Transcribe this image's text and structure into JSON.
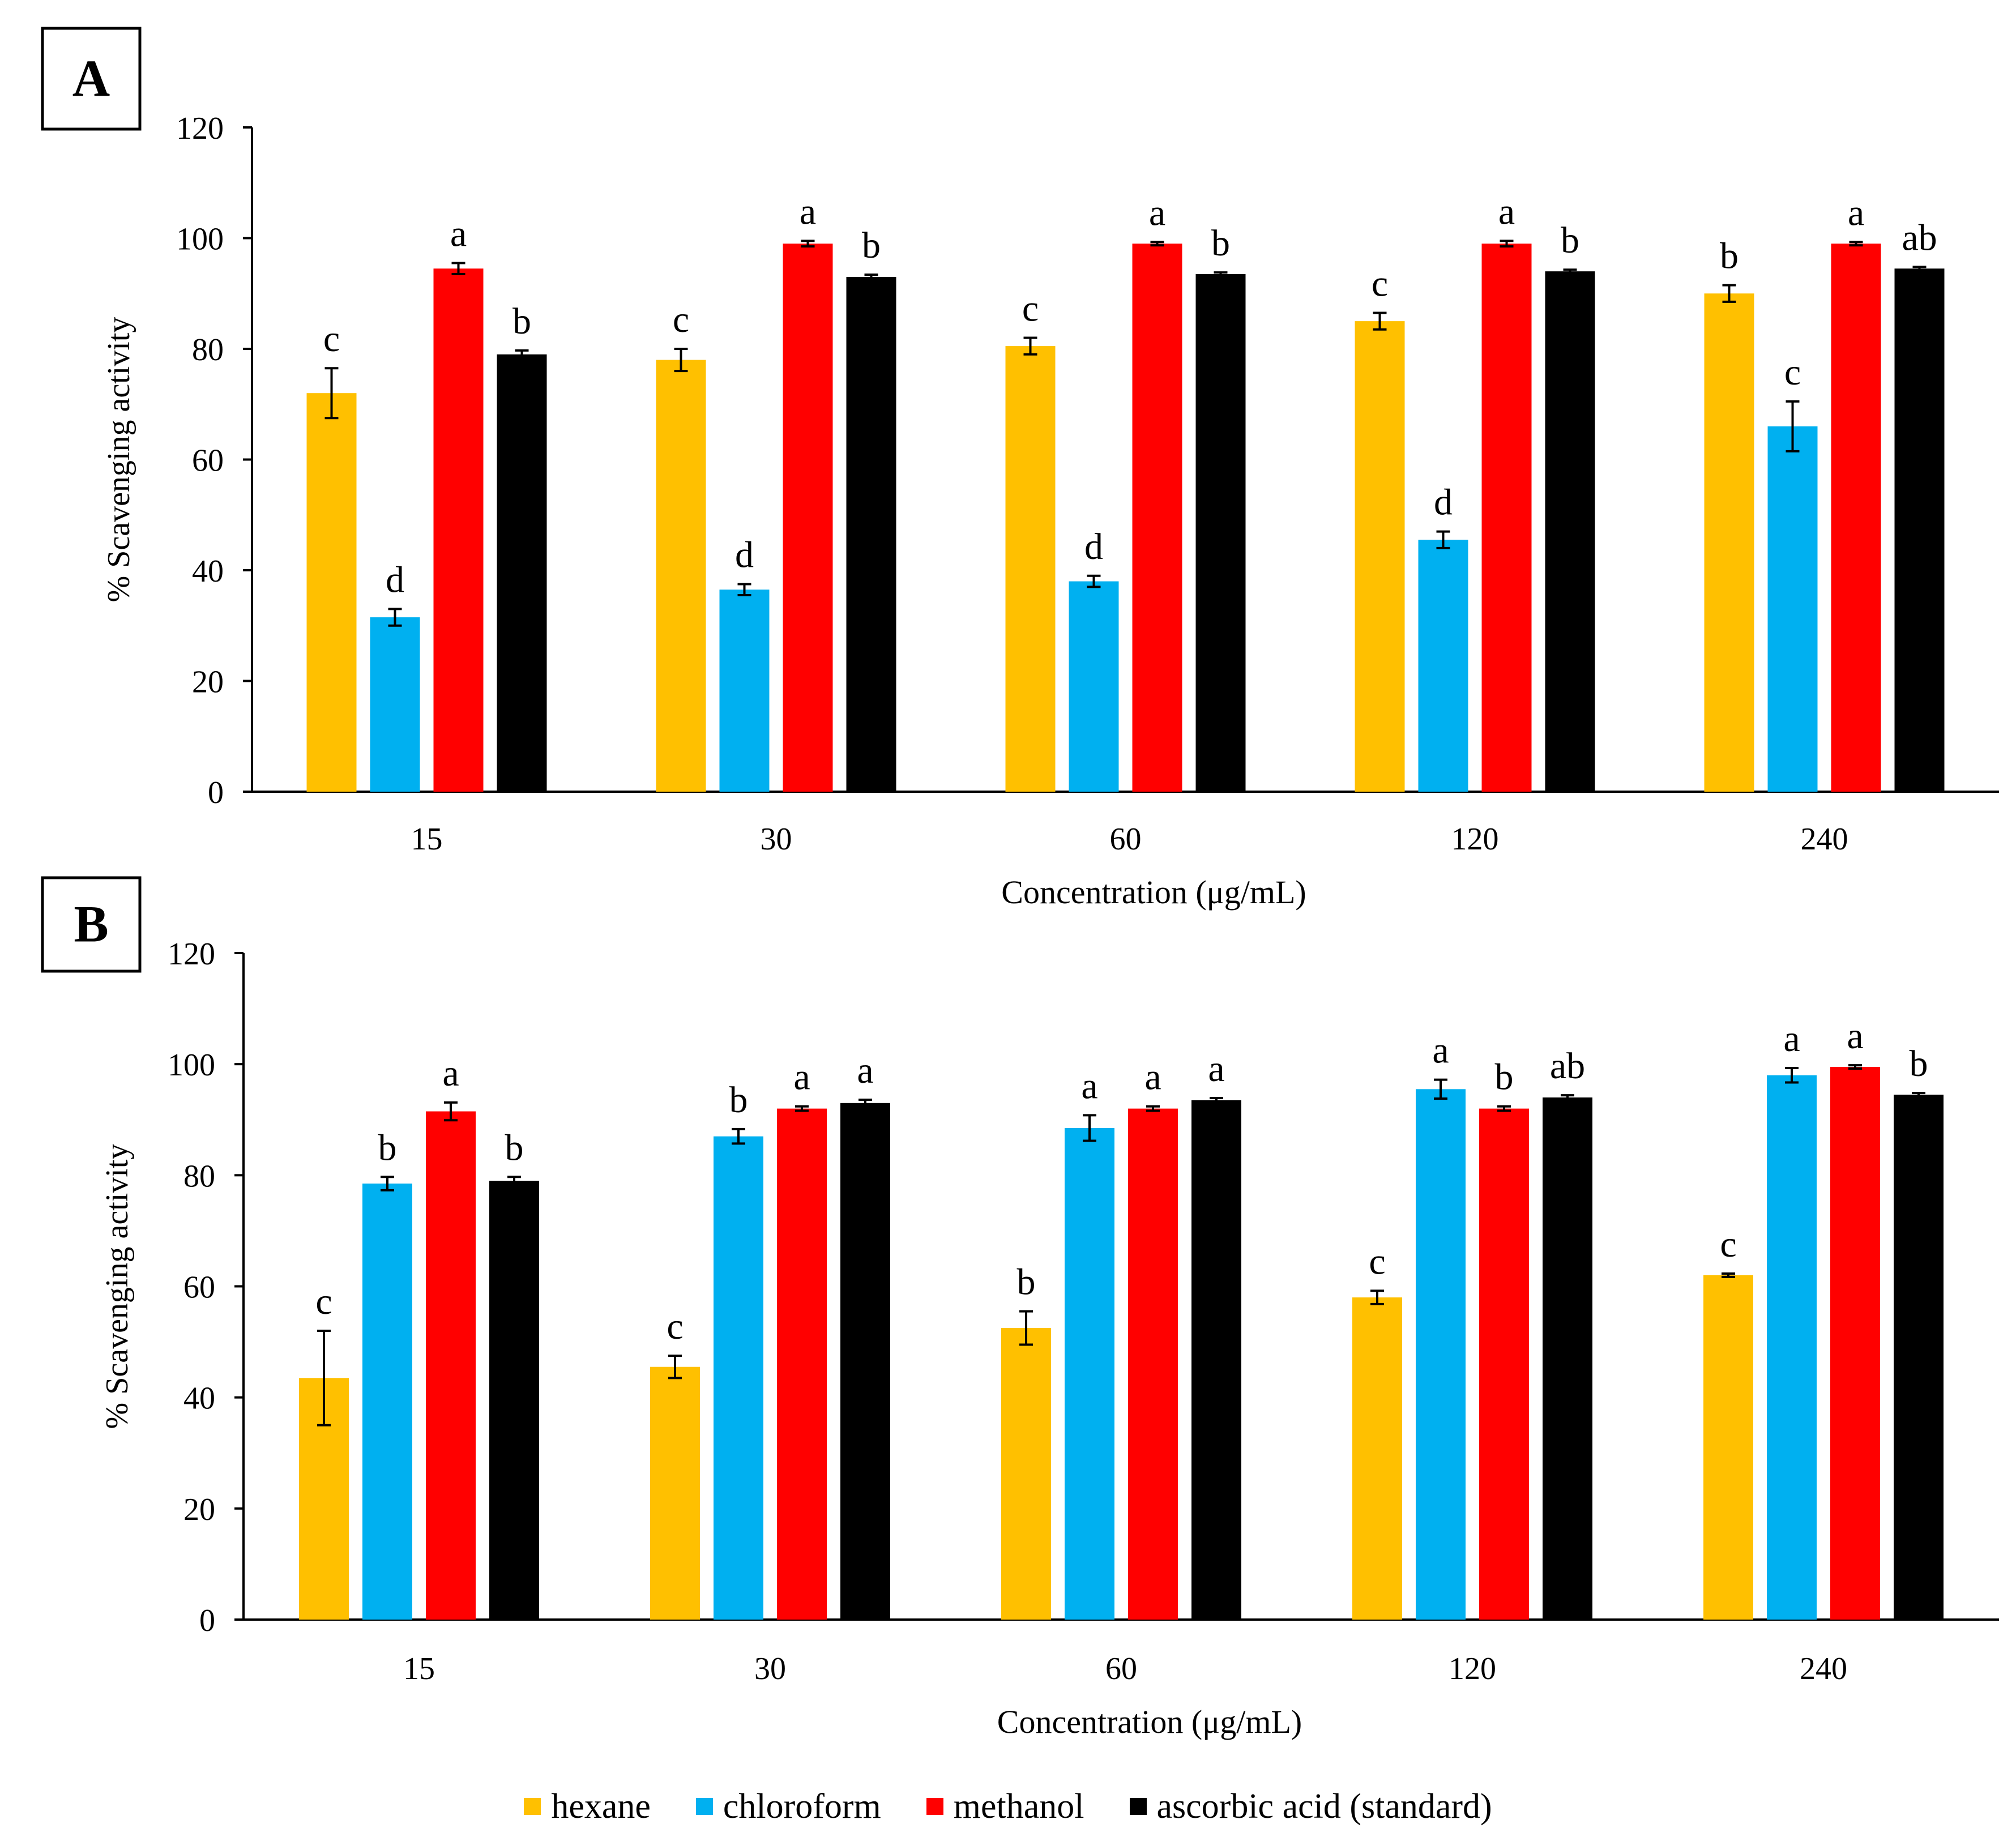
{
  "colors": {
    "hexane": "#FFC000",
    "chloroform": "#00B0F0",
    "methanol": "#FF0000",
    "ascorbic": "#000000"
  },
  "legend": [
    {
      "label": "hexane",
      "color": "#FFC000"
    },
    {
      "label": "chloroform",
      "color": "#00B0F0"
    },
    {
      "label": "methanol",
      "color": "#FF0000"
    },
    {
      "label": "ascorbic acid (standard)",
      "color": "#000000"
    }
  ],
  "chart_data": [
    {
      "panel": "A",
      "type": "bar",
      "xlabel": "Concentration (μg/mL)",
      "ylabel": "% Scavenging activity",
      "ylim": [
        0,
        120
      ],
      "yticks": [
        "0",
        "20",
        "40",
        "60",
        "80",
        "100",
        "120"
      ],
      "categories": [
        "15",
        "30",
        "60",
        "120",
        "240"
      ],
      "series": [
        {
          "name": "hexane",
          "values": [
            72,
            78,
            80.5,
            85,
            90
          ],
          "errors": [
            4.5,
            2,
            1.5,
            1.5,
            1.5
          ],
          "letters": [
            "c",
            "c",
            "c",
            "c",
            "b"
          ]
        },
        {
          "name": "chloroform",
          "values": [
            31.5,
            36.5,
            38,
            45.5,
            66
          ],
          "errors": [
            1.5,
            1,
            1,
            1.5,
            4.5
          ],
          "letters": [
            "d",
            "d",
            "d",
            "d",
            "c"
          ]
        },
        {
          "name": "methanol",
          "values": [
            94.5,
            99,
            99,
            99,
            99
          ],
          "errors": [
            1,
            0.5,
            0.3,
            0.5,
            0.3
          ],
          "letters": [
            "a",
            "a",
            "a",
            "a",
            "a"
          ]
        },
        {
          "name": "ascorbic acid (standard)",
          "values": [
            79,
            93,
            93.5,
            94,
            94.5
          ],
          "errors": [
            0.7,
            0.4,
            0.3,
            0.3,
            0.3
          ],
          "letters": [
            "b",
            "b",
            "b",
            "b",
            "ab"
          ]
        }
      ]
    },
    {
      "panel": "B",
      "type": "bar",
      "xlabel": "Concentration (μg/mL)",
      "ylabel": "% Scavenging activity",
      "ylim": [
        0,
        120
      ],
      "yticks": [
        "0",
        "20",
        "40",
        "60",
        "80",
        "100",
        "120"
      ],
      "categories": [
        "15",
        "30",
        "60",
        "120",
        "240"
      ],
      "series": [
        {
          "name": "hexane",
          "values": [
            43.5,
            45.5,
            52.5,
            58,
            62
          ],
          "errors": [
            8.5,
            2,
            3,
            1.2,
            0.3
          ],
          "letters": [
            "c",
            "c",
            "b",
            "c",
            "c"
          ]
        },
        {
          "name": "chloroform",
          "values": [
            78.5,
            87,
            88.5,
            95.5,
            98
          ],
          "errors": [
            1.2,
            1.3,
            2.3,
            1.7,
            1.3
          ],
          "letters": [
            "b",
            "b",
            "a",
            "a",
            "a"
          ]
        },
        {
          "name": "methanol",
          "values": [
            91.5,
            92,
            92,
            92,
            99.5
          ],
          "errors": [
            1.6,
            0.4,
            0.4,
            0.4,
            0.3
          ],
          "letters": [
            "a",
            "a",
            "a",
            "b",
            "a"
          ]
        },
        {
          "name": "ascorbic acid (standard)",
          "values": [
            79,
            93,
            93.5,
            94,
            94.5
          ],
          "errors": [
            0.7,
            0.6,
            0.4,
            0.4,
            0.3
          ],
          "letters": [
            "b",
            "a",
            "a",
            "ab",
            "b"
          ]
        }
      ]
    }
  ]
}
